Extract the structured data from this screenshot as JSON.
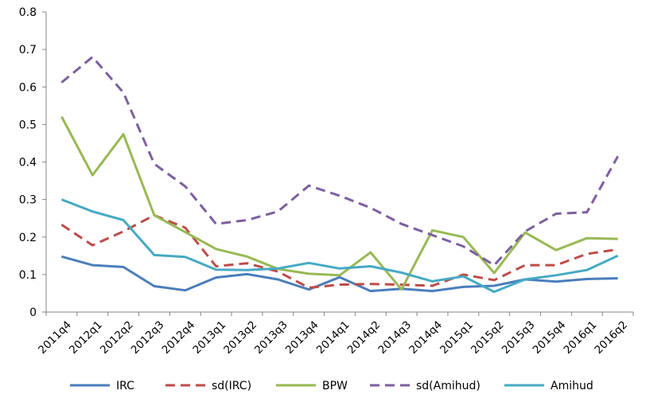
{
  "chart_data": {
    "type": "line",
    "categories": [
      "2011q4",
      "2012q1",
      "2012q2",
      "2012q3",
      "2012q4",
      "2013q1",
      "2013q2",
      "2013q3",
      "2013q4",
      "2014q1",
      "2014q2",
      "2014q3",
      "2014q4",
      "2015q1",
      "2015q2",
      "2015q3",
      "2015q4",
      "2016q1",
      "2016q2"
    ],
    "ylim": [
      0,
      0.8
    ],
    "yticks": [
      "0",
      "0.1",
      "0.2",
      "0.3",
      "0.4",
      "0.5",
      "0.6",
      "0.7",
      "0.8"
    ],
    "grid": false,
    "legend_position": "bottom",
    "series": [
      {
        "name": "IRC",
        "color": "#4a7ebb",
        "dash": "solid",
        "values": [
          0.148,
          0.125,
          0.12,
          0.069,
          0.058,
          0.092,
          0.101,
          0.087,
          0.06,
          0.093,
          0.056,
          0.062,
          0.056,
          0.067,
          0.07,
          0.087,
          0.081,
          0.088,
          0.09
        ]
      },
      {
        "name": "sd(IRC)",
        "color": "#be4b48",
        "dash": "dashed",
        "values": [
          0.233,
          0.178,
          0.215,
          0.258,
          0.225,
          0.122,
          0.13,
          0.108,
          0.065,
          0.073,
          0.075,
          0.073,
          0.07,
          0.1,
          0.085,
          0.125,
          0.125,
          0.155,
          0.167
        ]
      },
      {
        "name": "BPW",
        "color": "#98b954",
        "dash": "solid",
        "values": [
          0.521,
          0.365,
          0.474,
          0.258,
          0.213,
          0.168,
          0.148,
          0.115,
          0.102,
          0.098,
          0.159,
          0.06,
          0.218,
          0.2,
          0.104,
          0.212,
          0.165,
          0.197,
          0.195
        ]
      },
      {
        "name": "sd(Amihud)",
        "color": "#7d5fa0",
        "dash": "dashed",
        "values": [
          0.612,
          0.68,
          0.585,
          0.395,
          0.335,
          0.235,
          0.245,
          0.268,
          0.337,
          0.31,
          0.278,
          0.235,
          0.205,
          0.175,
          0.125,
          0.215,
          0.262,
          0.266,
          0.415
        ]
      },
      {
        "name": "Amihud",
        "color": "#46aac4",
        "dash": "solid",
        "values": [
          0.3,
          0.268,
          0.245,
          0.152,
          0.147,
          0.113,
          0.112,
          0.116,
          0.131,
          0.116,
          0.122,
          0.105,
          0.082,
          0.095,
          0.054,
          0.087,
          0.098,
          0.112,
          0.15
        ]
      }
    ]
  }
}
